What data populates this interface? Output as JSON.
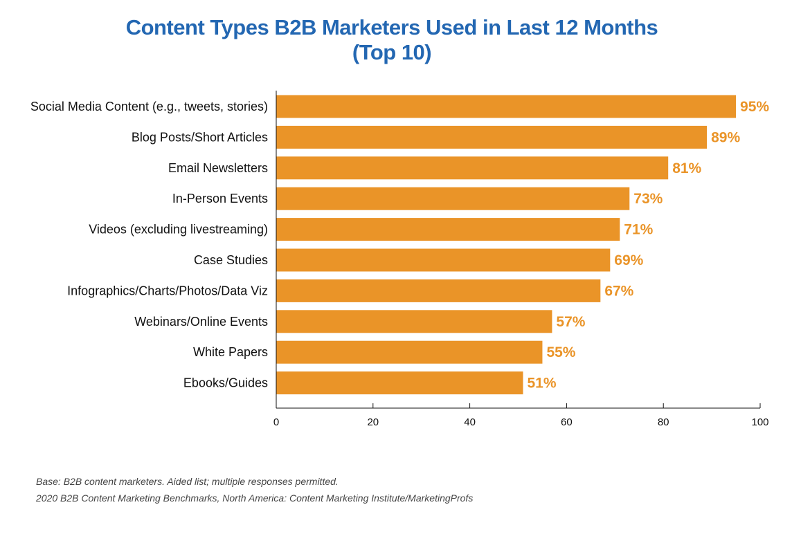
{
  "chart_data": {
    "type": "bar",
    "orientation": "horizontal",
    "title": "Content Types B2B Marketers Used in Last 12 Months",
    "subtitle": "(Top 10)",
    "categories": [
      "Social Media Content (e.g., tweets, stories)",
      "Blog Posts/Short Articles",
      "Email Newsletters",
      "In-Person Events",
      "Videos (excluding livestreaming)",
      "Case Studies",
      "Infographics/Charts/Photos/Data Viz",
      "Webinars/Online Events",
      "White Papers",
      "Ebooks/Guides"
    ],
    "values": [
      95,
      89,
      81,
      73,
      71,
      69,
      67,
      57,
      55,
      51
    ],
    "data_labels": [
      "95%",
      "89%",
      "81%",
      "73%",
      "71%",
      "69%",
      "67%",
      "57%",
      "55%",
      "51%"
    ],
    "xlim": [
      0,
      100
    ],
    "xticks": [
      0,
      20,
      40,
      60,
      80,
      100
    ],
    "xlabel": "",
    "ylabel": "",
    "grid": false,
    "legend": "none",
    "bar_color": "#ea9428",
    "label_color": "#ea9428",
    "title_color": "#2367b2"
  },
  "footnotes": {
    "base": "Base: B2B content marketers. Aided list; multiple responses permitted.",
    "source": "2020 B2B Content Marketing Benchmarks, North America: Content Marketing Institute/MarketingProfs"
  }
}
